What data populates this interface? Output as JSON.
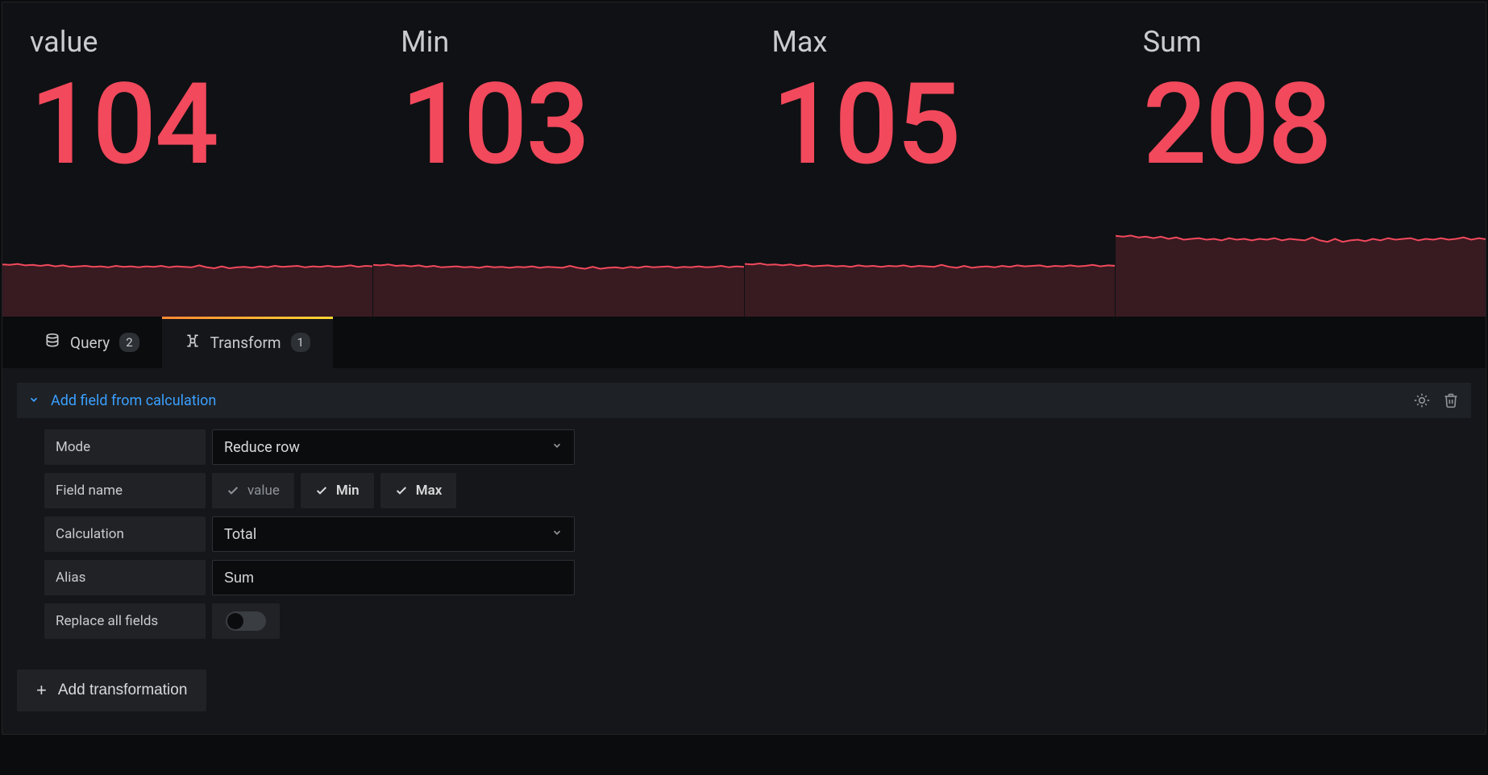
{
  "colors": {
    "value": "#f2495c",
    "spark_stroke": "#f2495c",
    "spark_fill": "rgba(242,73,92,0.18)",
    "title": "#c9cbce",
    "bg": "#0f1114",
    "tab_gradient_from": "#ff8833",
    "tab_gradient_to": "#ffd633",
    "link": "#3aa0ff"
  },
  "stats": [
    {
      "title": "value",
      "value": "104",
      "spark": {
        "ymin": 0,
        "ymax": 200,
        "points": [
          108,
          107,
          109,
          106,
          107,
          105,
          107,
          104,
          106,
          103,
          104,
          105,
          103,
          104,
          102,
          105,
          103,
          104,
          102,
          104,
          103,
          105,
          102,
          104,
          103,
          102,
          106,
          102,
          100,
          104,
          100,
          102,
          103,
          101,
          104,
          102,
          105,
          103,
          104,
          105,
          102,
          104,
          103,
          105,
          103,
          104,
          106,
          103,
          105,
          104
        ]
      }
    },
    {
      "title": "Min",
      "value": "103",
      "spark": {
        "ymin": 0,
        "ymax": 200,
        "points": [
          107,
          106,
          108,
          105,
          106,
          104,
          106,
          103,
          105,
          102,
          103,
          104,
          102,
          103,
          101,
          104,
          102,
          103,
          101,
          103,
          102,
          104,
          101,
          103,
          102,
          101,
          105,
          101,
          99,
          103,
          99,
          101,
          102,
          100,
          103,
          101,
          104,
          102,
          103,
          104,
          101,
          103,
          102,
          104,
          102,
          103,
          105,
          102,
          104,
          103
        ]
      }
    },
    {
      "title": "Max",
      "value": "105",
      "spark": {
        "ymin": 0,
        "ymax": 200,
        "points": [
          109,
          108,
          110,
          107,
          108,
          106,
          108,
          105,
          107,
          104,
          105,
          106,
          104,
          105,
          103,
          106,
          104,
          105,
          103,
          105,
          104,
          106,
          103,
          105,
          104,
          103,
          107,
          103,
          101,
          105,
          101,
          103,
          104,
          102,
          105,
          103,
          106,
          104,
          105,
          106,
          103,
          105,
          104,
          106,
          104,
          105,
          107,
          104,
          106,
          105
        ]
      }
    },
    {
      "title": "Sum",
      "value": "208",
      "spark": {
        "ymin": 0,
        "ymax": 260,
        "points": [
          217,
          215,
          218,
          213,
          215,
          211,
          215,
          209,
          213,
          207,
          209,
          211,
          207,
          209,
          205,
          211,
          207,
          209,
          205,
          209,
          207,
          211,
          205,
          209,
          207,
          205,
          213,
          205,
          201,
          209,
          201,
          205,
          207,
          203,
          209,
          205,
          211,
          207,
          209,
          211,
          205,
          209,
          207,
          211,
          207,
          209,
          213,
          207,
          211,
          208
        ]
      }
    }
  ],
  "tabs": {
    "query": {
      "label": "Query",
      "count": "2"
    },
    "transform": {
      "label": "Transform",
      "count": "1"
    }
  },
  "transform": {
    "title": "Add field from calculation",
    "rows": {
      "mode": {
        "label": "Mode",
        "value": "Reduce row"
      },
      "field_name": {
        "label": "Field name",
        "chips": [
          {
            "label": "value",
            "checked": false
          },
          {
            "label": "Min",
            "checked": true
          },
          {
            "label": "Max",
            "checked": true
          }
        ]
      },
      "calculation": {
        "label": "Calculation",
        "value": "Total"
      },
      "alias": {
        "label": "Alias",
        "value": "Sum"
      },
      "replace": {
        "label": "Replace all fields",
        "on": false
      }
    }
  },
  "buttons": {
    "add_transformation": "Add transformation"
  }
}
